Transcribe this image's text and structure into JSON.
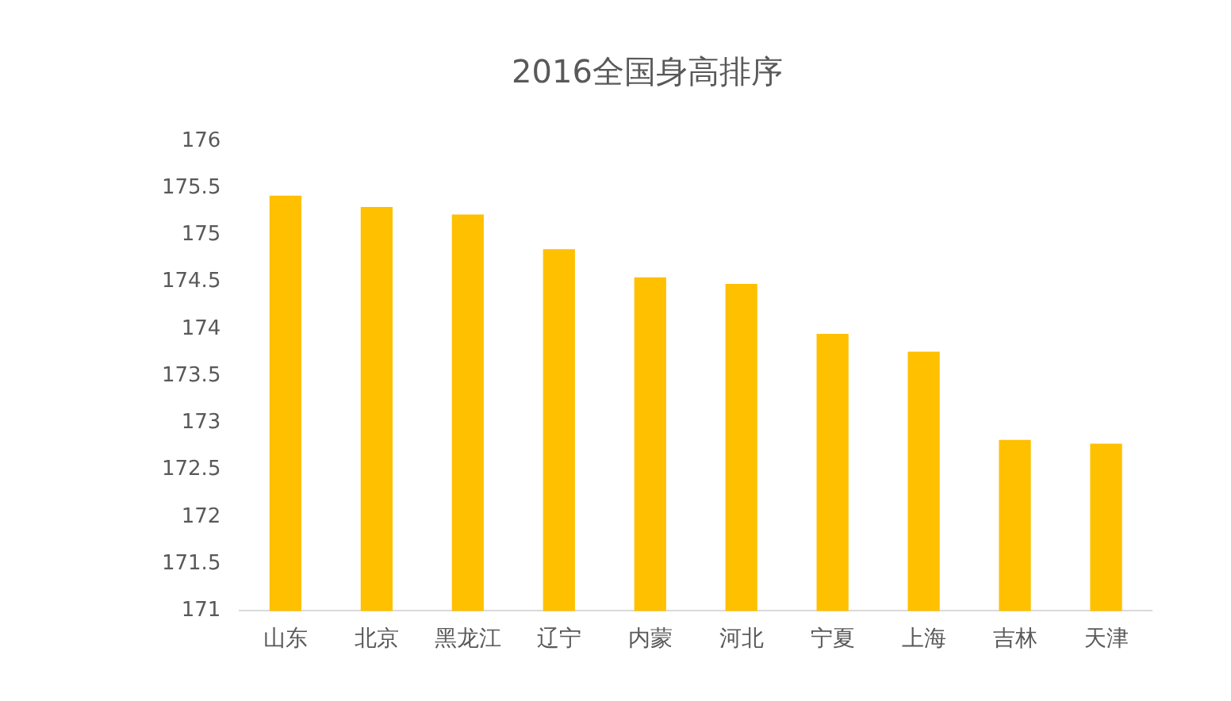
{
  "chart_data": {
    "type": "bar",
    "title": "2016全国身高排序",
    "categories": [
      "山东",
      "北京",
      "黑龙江",
      "辽宁",
      "内蒙",
      "河北",
      "宁夏",
      "上海",
      "吉林",
      "天津"
    ],
    "values": [
      175.42,
      175.3,
      175.22,
      174.85,
      174.55,
      174.48,
      173.95,
      173.76,
      172.82,
      172.78
    ],
    "color": "#ffc000",
    "ylim": [
      171,
      176
    ],
    "yticks": [
      171,
      171.5,
      172,
      172.5,
      173,
      173.5,
      174,
      174.5,
      175,
      175.5,
      176
    ],
    "grid": false,
    "legend": false
  }
}
